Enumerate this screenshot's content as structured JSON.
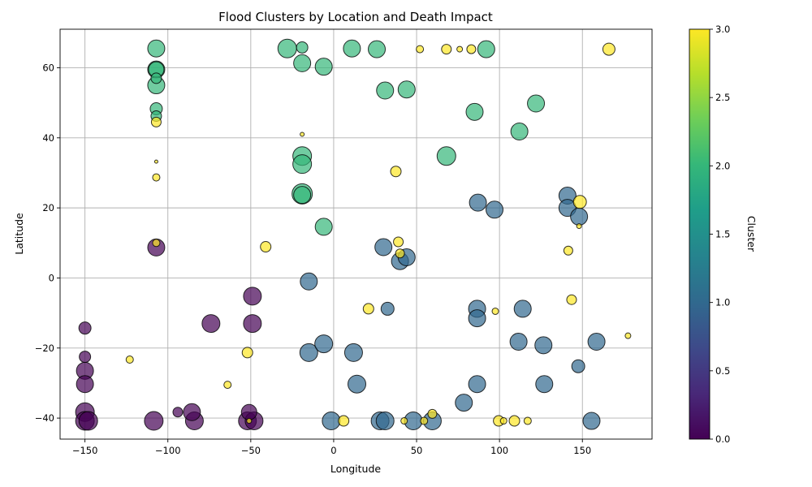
{
  "chart_data": {
    "type": "scatter",
    "title": "Flood Clusters by Location and Death Impact",
    "xlabel": "Longitude",
    "ylabel": "Latitude",
    "xlim": [
      -165,
      192
    ],
    "ylim": [
      -46,
      71
    ],
    "xticks": [
      -150,
      -100,
      -50,
      0,
      50,
      100,
      150
    ],
    "yticks": [
      -40,
      -20,
      0,
      20,
      40,
      60
    ],
    "grid": true,
    "colorbar": {
      "label": "Cluster",
      "range": [
        0,
        3
      ],
      "ticks": [
        "0.0",
        "0.5",
        "1.0",
        "1.5",
        "2.0",
        "2.5",
        "3.0"
      ],
      "colormap": [
        "#440154",
        "#482878",
        "#3e4989",
        "#31688e",
        "#26828e",
        "#1f9e89",
        "#35b779",
        "#6ece58",
        "#b5de2b",
        "#fde725"
      ]
    },
    "marker_alpha": 0.7,
    "marker_edge_color": "#000000",
    "size_encodes": "death impact",
    "points": [
      {
        "x": -107,
        "y": 65.5,
        "c": 2,
        "s": 20
      },
      {
        "x": -107,
        "y": 59.5,
        "c": 2,
        "s": 20
      },
      {
        "x": -107,
        "y": 59.5,
        "c": 2,
        "s": 18
      },
      {
        "x": -107,
        "y": 57,
        "c": 2,
        "s": 12
      },
      {
        "x": -107,
        "y": 55,
        "c": 2,
        "s": 20
      },
      {
        "x": -107,
        "y": 48.3,
        "c": 2,
        "s": 14
      },
      {
        "x": -107,
        "y": 46.2,
        "c": 2,
        "s": 12
      },
      {
        "x": -107,
        "y": 44.5,
        "c": 3,
        "s": 11
      },
      {
        "x": -107,
        "y": 33.2,
        "c": 3,
        "s": 3
      },
      {
        "x": -107,
        "y": 28.7,
        "c": 3,
        "s": 8
      },
      {
        "x": -107,
        "y": 10,
        "c": 3,
        "s": 8
      },
      {
        "x": -107,
        "y": 8.7,
        "c": 0,
        "s": 20
      },
      {
        "x": -28,
        "y": 65.5,
        "c": 2,
        "s": 22
      },
      {
        "x": -19,
        "y": 65.8,
        "c": 2,
        "s": 13
      },
      {
        "x": -19,
        "y": 61.3,
        "c": 2,
        "s": 20
      },
      {
        "x": -6,
        "y": 60.3,
        "c": 2,
        "s": 20
      },
      {
        "x": -19,
        "y": 41,
        "c": 3,
        "s": 4
      },
      {
        "x": -19,
        "y": 34.8,
        "c": 2,
        "s": 22
      },
      {
        "x": -19,
        "y": 32.5,
        "c": 2,
        "s": 22
      },
      {
        "x": -19,
        "y": 24,
        "c": 2,
        "s": 24
      },
      {
        "x": -19,
        "y": 23.7,
        "c": 2,
        "s": 20
      },
      {
        "x": -6,
        "y": 14.6,
        "c": 2,
        "s": 20
      },
      {
        "x": 11,
        "y": 65.5,
        "c": 2,
        "s": 20
      },
      {
        "x": 26,
        "y": 65.3,
        "c": 2,
        "s": 20
      },
      {
        "x": 52,
        "y": 65.3,
        "c": 3,
        "s": 8
      },
      {
        "x": 68,
        "y": 65.3,
        "c": 3,
        "s": 11
      },
      {
        "x": 76,
        "y": 65.3,
        "c": 3,
        "s": 6
      },
      {
        "x": 83,
        "y": 65.3,
        "c": 3,
        "s": 10
      },
      {
        "x": 92,
        "y": 65.3,
        "c": 2,
        "s": 20
      },
      {
        "x": 166,
        "y": 65.3,
        "c": 3,
        "s": 14
      },
      {
        "x": 31,
        "y": 53.5,
        "c": 2,
        "s": 20
      },
      {
        "x": 44,
        "y": 53.8,
        "c": 2,
        "s": 20
      },
      {
        "x": 122,
        "y": 49.8,
        "c": 2,
        "s": 20
      },
      {
        "x": 85,
        "y": 47.4,
        "c": 2,
        "s": 20
      },
      {
        "x": 112,
        "y": 41.8,
        "c": 2,
        "s": 20
      },
      {
        "x": 68,
        "y": 34.8,
        "c": 2,
        "s": 22
      },
      {
        "x": 37.5,
        "y": 30.4,
        "c": 3,
        "s": 12
      },
      {
        "x": -41,
        "y": 8.9,
        "c": 3,
        "s": 12
      },
      {
        "x": 39,
        "y": 10.3,
        "c": 3,
        "s": 11
      },
      {
        "x": 40,
        "y": 7,
        "c": 3,
        "s": 10
      },
      {
        "x": 30,
        "y": 8.8,
        "c": 1,
        "s": 20
      },
      {
        "x": 40,
        "y": 4.8,
        "c": 1,
        "s": 20
      },
      {
        "x": 44,
        "y": 5.9,
        "c": 1,
        "s": 20
      },
      {
        "x": -15,
        "y": -1,
        "c": 1,
        "s": 20
      },
      {
        "x": 87,
        "y": 21.5,
        "c": 1,
        "s": 20
      },
      {
        "x": 97,
        "y": 19.5,
        "c": 1,
        "s": 20
      },
      {
        "x": 141,
        "y": 23.5,
        "c": 1,
        "s": 20
      },
      {
        "x": 141,
        "y": 20,
        "c": 1,
        "s": 20
      },
      {
        "x": 148,
        "y": 17.5,
        "c": 1,
        "s": 20
      },
      {
        "x": 148.5,
        "y": 21.7,
        "c": 3,
        "s": 15
      },
      {
        "x": 148,
        "y": 14.8,
        "c": 3,
        "s": 5
      },
      {
        "x": 141.5,
        "y": 7.8,
        "c": 3,
        "s": 10
      },
      {
        "x": 143.5,
        "y": -6.2,
        "c": 3,
        "s": 11
      },
      {
        "x": 21,
        "y": -8.8,
        "c": 3,
        "s": 12
      },
      {
        "x": 32.5,
        "y": -8.8,
        "c": 1,
        "s": 15
      },
      {
        "x": 86.5,
        "y": -8.8,
        "c": 1,
        "s": 20
      },
      {
        "x": 86.5,
        "y": -11.5,
        "c": 1,
        "s": 20
      },
      {
        "x": 97.5,
        "y": -9.5,
        "c": 3,
        "s": 7
      },
      {
        "x": 114,
        "y": -8.8,
        "c": 1,
        "s": 20
      },
      {
        "x": 177.5,
        "y": -16.5,
        "c": 3,
        "s": 6
      },
      {
        "x": 158.5,
        "y": -18.2,
        "c": 1,
        "s": 20
      },
      {
        "x": 111.5,
        "y": -18.2,
        "c": 1,
        "s": 20
      },
      {
        "x": 126.5,
        "y": -19.2,
        "c": 1,
        "s": 20
      },
      {
        "x": 147.5,
        "y": -25.2,
        "c": 1,
        "s": 15
      },
      {
        "x": -52,
        "y": -21.3,
        "c": 3,
        "s": 12
      },
      {
        "x": -123,
        "y": -23.3,
        "c": 3,
        "s": 8
      },
      {
        "x": -64,
        "y": -30.5,
        "c": 3,
        "s": 8
      },
      {
        "x": -15,
        "y": -21.3,
        "c": 1,
        "s": 21
      },
      {
        "x": -6,
        "y": -18.8,
        "c": 1,
        "s": 21
      },
      {
        "x": 12,
        "y": -21.3,
        "c": 1,
        "s": 21
      },
      {
        "x": 14,
        "y": -30.3,
        "c": 1,
        "s": 21
      },
      {
        "x": 86.5,
        "y": -30.3,
        "c": 1,
        "s": 20
      },
      {
        "x": 127,
        "y": -30.3,
        "c": 1,
        "s": 20
      },
      {
        "x": 78.5,
        "y": -35.6,
        "c": 1,
        "s": 20
      },
      {
        "x": 59.5,
        "y": -38.8,
        "c": 3,
        "s": 10
      },
      {
        "x": -1.5,
        "y": -40.8,
        "c": 1,
        "s": 21
      },
      {
        "x": 6,
        "y": -40.8,
        "c": 3,
        "s": 12
      },
      {
        "x": 28,
        "y": -40.8,
        "c": 1,
        "s": 21
      },
      {
        "x": 31,
        "y": -40.8,
        "c": 1,
        "s": 21
      },
      {
        "x": 42.5,
        "y": -40.8,
        "c": 3,
        "s": 7
      },
      {
        "x": 48,
        "y": -40.8,
        "c": 1,
        "s": 21
      },
      {
        "x": 54.5,
        "y": -40.8,
        "c": 3,
        "s": 8
      },
      {
        "x": 59.5,
        "y": -40.8,
        "c": 1,
        "s": 21
      },
      {
        "x": 99.5,
        "y": -40.8,
        "c": 3,
        "s": 12
      },
      {
        "x": 102.5,
        "y": -40.8,
        "c": 3,
        "s": 7
      },
      {
        "x": 109,
        "y": -40.8,
        "c": 3,
        "s": 12
      },
      {
        "x": 117,
        "y": -40.8,
        "c": 3,
        "s": 8
      },
      {
        "x": 155.5,
        "y": -40.8,
        "c": 1,
        "s": 20
      },
      {
        "x": -150,
        "y": -14.3,
        "c": 0,
        "s": 14
      },
      {
        "x": -150,
        "y": -22.5,
        "c": 0,
        "s": 13
      },
      {
        "x": -150,
        "y": -26.5,
        "c": 0,
        "s": 20
      },
      {
        "x": -150,
        "y": -30.3,
        "c": 0,
        "s": 20
      },
      {
        "x": -150,
        "y": -38.3,
        "c": 0,
        "s": 22
      },
      {
        "x": -150,
        "y": -40.8,
        "c": 0,
        "s": 22
      },
      {
        "x": -148,
        "y": -40.8,
        "c": 0,
        "s": 22
      },
      {
        "x": -108.5,
        "y": -40.8,
        "c": 0,
        "s": 22
      },
      {
        "x": -94,
        "y": -38.3,
        "c": 0,
        "s": 11
      },
      {
        "x": -85.5,
        "y": -38.3,
        "c": 0,
        "s": 20
      },
      {
        "x": -84,
        "y": -40.8,
        "c": 0,
        "s": 21
      },
      {
        "x": -74,
        "y": -13,
        "c": 0,
        "s": 21
      },
      {
        "x": -49,
        "y": -5.2,
        "c": 0,
        "s": 21
      },
      {
        "x": -49,
        "y": -13,
        "c": 0,
        "s": 21
      },
      {
        "x": -51,
        "y": -38.3,
        "c": 0,
        "s": 18
      },
      {
        "x": -52,
        "y": -40.8,
        "c": 0,
        "s": 21
      },
      {
        "x": -48,
        "y": -40.8,
        "c": 0,
        "s": 21
      },
      {
        "x": -51,
        "y": -40.8,
        "c": 3,
        "s": 5
      }
    ]
  }
}
